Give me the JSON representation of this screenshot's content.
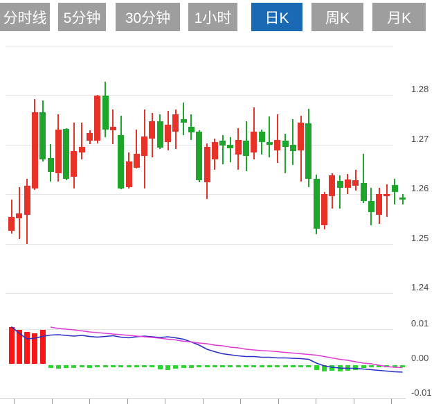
{
  "tab_bar": {
    "tabs": [
      {
        "label": "分时线",
        "active": false
      },
      {
        "label": "5分钟",
        "active": false
      },
      {
        "label": "30分钟",
        "active": false
      },
      {
        "label": "1小时",
        "active": false
      },
      {
        "label": "日K",
        "active": true
      },
      {
        "label": "周K",
        "active": false
      },
      {
        "label": "月K",
        "active": false
      }
    ],
    "active_color": "#1a69b4",
    "inactive_color": "#9e9e9e",
    "text_color": "#ffffff"
  },
  "price_axis": {
    "labels": [
      "1.28",
      "1.27",
      "1.26",
      "1.25",
      "1.24"
    ],
    "values": [
      1.28,
      1.27,
      1.26,
      1.25,
      1.24
    ]
  },
  "indicator_axis": {
    "labels": [
      "0.01",
      "0.00",
      "-0.01"
    ],
    "values": [
      0.01,
      0.0,
      -0.01
    ]
  },
  "colors": {
    "up": "#e63229",
    "down": "#1ea52c",
    "hist_up": "#f81616",
    "hist_down": "#2ed52e",
    "dif_line": "#2a2ec4",
    "dea_line": "#e13ad9",
    "grid": "#e3e3e3",
    "axis_text": "#4a4a4a"
  },
  "chart_data": {
    "type": "candlestick",
    "panels": [
      {
        "name": "price",
        "type": "candlestick",
        "ylim": [
          1.2385,
          1.2895
        ],
        "yticks": [
          1.28,
          1.27,
          1.26,
          1.25,
          1.24
        ],
        "up_means": "rise (red, CN convention)",
        "down_means": "fall (green, CN convention)",
        "candles_ohlc": [
          [
            1.2526,
            1.2589,
            1.252,
            1.2554
          ],
          [
            1.2551,
            1.2614,
            1.2509,
            1.2561
          ],
          [
            1.2558,
            1.2631,
            1.2499,
            1.2617
          ],
          [
            1.2611,
            1.2792,
            1.2609,
            1.2765
          ],
          [
            1.2765,
            1.2789,
            1.2666,
            1.267
          ],
          [
            1.2673,
            1.2701,
            1.2625,
            1.2645
          ],
          [
            1.2642,
            1.2761,
            1.2625,
            1.273
          ],
          [
            1.2732,
            1.2733,
            1.2628,
            1.2631
          ],
          [
            1.2635,
            1.2744,
            1.2611,
            1.2687
          ],
          [
            1.2684,
            1.2744,
            1.267,
            1.2695
          ],
          [
            1.2708,
            1.2729,
            1.2701,
            1.2723
          ],
          [
            1.2708,
            1.28,
            1.2702,
            1.2799
          ],
          [
            1.2799,
            1.2827,
            1.2715,
            1.273
          ],
          [
            1.2729,
            1.2771,
            1.2701,
            1.2736
          ],
          [
            1.2719,
            1.2758,
            1.261,
            1.2611
          ],
          [
            1.2614,
            1.2684,
            1.2611,
            1.2666
          ],
          [
            1.2653,
            1.273,
            1.2652,
            1.2681
          ],
          [
            1.2677,
            1.2771,
            1.2611,
            1.2716
          ],
          [
            1.2712,
            1.2764,
            1.2674,
            1.2747
          ],
          [
            1.2747,
            1.2761,
            1.2691,
            1.2694
          ],
          [
            1.2705,
            1.2768,
            1.2688,
            1.274
          ],
          [
            1.2726,
            1.2771,
            1.2691,
            1.2761
          ],
          [
            1.2751,
            1.2785,
            1.2719,
            1.2744
          ],
          [
            1.2736,
            1.2761,
            1.2709,
            1.2725
          ],
          [
            1.2726,
            1.2729,
            1.2624,
            1.2628
          ],
          [
            1.2624,
            1.2702,
            1.259,
            1.2695
          ],
          [
            1.267,
            1.2712,
            1.2649,
            1.2705
          ],
          [
            1.2708,
            1.2719,
            1.266,
            1.2698
          ],
          [
            1.27,
            1.2715,
            1.2665,
            1.2692
          ],
          [
            1.268,
            1.2733,
            1.2649,
            1.2709
          ],
          [
            1.2708,
            1.2747,
            1.2646,
            1.2677
          ],
          [
            1.2684,
            1.2775,
            1.267,
            1.2726
          ],
          [
            1.2726,
            1.273,
            1.268,
            1.2705
          ],
          [
            1.2705,
            1.2757,
            1.2674,
            1.2699
          ],
          [
            1.2688,
            1.2761,
            1.2663,
            1.2709
          ],
          [
            1.2708,
            1.2722,
            1.2642,
            1.2695
          ],
          [
            1.2699,
            1.2751,
            1.2659,
            1.2687
          ],
          [
            1.2688,
            1.2758,
            1.2625,
            1.2744
          ],
          [
            1.2743,
            1.2772,
            1.2614,
            1.2631
          ],
          [
            1.2631,
            1.2639,
            1.2519,
            1.253
          ],
          [
            1.2537,
            1.2604,
            1.2529,
            1.26
          ],
          [
            1.2596,
            1.2642,
            1.2571,
            1.2638
          ],
          [
            1.2627,
            1.2638,
            1.2571,
            1.2613
          ],
          [
            1.2613,
            1.2641,
            1.26,
            1.2629
          ],
          [
            1.2617,
            1.2649,
            1.2607,
            1.2628
          ],
          [
            1.2622,
            1.2681,
            1.2582,
            1.2586
          ],
          [
            1.2586,
            1.2613,
            1.2537,
            1.2564
          ],
          [
            1.2558,
            1.2613,
            1.254,
            1.26
          ],
          [
            1.2596,
            1.262,
            1.2554,
            1.26
          ],
          [
            1.2618,
            1.2631,
            1.2579,
            1.2604
          ],
          [
            1.2593,
            1.26,
            1.2579,
            1.2589
          ]
        ]
      },
      {
        "name": "macd",
        "type": "bar+line",
        "ylim": [
          -0.012,
          0.012
        ],
        "yticks": [
          0.01,
          0.0,
          -0.01
        ],
        "histogram": [
          0.0106,
          0.0098,
          0.0092,
          0.0088,
          0.0098,
          -0.0012,
          -0.0014,
          -0.0011,
          -0.0012,
          -0.0009,
          -0.0011,
          -0.0009,
          -0.0008,
          -0.0009,
          -0.0006,
          -0.0005,
          -0.0007,
          -0.0008,
          -0.0009,
          -0.0015,
          -0.0017,
          -0.0013,
          -0.0011,
          -0.0011,
          -0.0009,
          -0.0009,
          -0.0009,
          -0.0009,
          -0.0008,
          -0.0009,
          -0.0008,
          -0.0007,
          -0.0008,
          -0.0005,
          -0.0006,
          -0.0008,
          -0.0007,
          -0.0005,
          -0.0008,
          -0.0017,
          -0.0021,
          -0.0019,
          -0.0021,
          -0.0019,
          -0.0017,
          -0.0011,
          -0.0009,
          -0.0008,
          -0.0006,
          -0.0005,
          -0.0004
        ],
        "dif": [
          0.0107,
          0.0088,
          0.0072,
          0.0074,
          0.0079,
          0.0083,
          0.0084,
          0.0082,
          0.008,
          0.0082,
          0.0079,
          0.0077,
          0.0079,
          0.0081,
          0.0077,
          0.0075,
          0.0078,
          0.008,
          0.0078,
          0.0076,
          0.0078,
          0.0075,
          0.0071,
          0.0063,
          0.0054,
          0.0042,
          0.0035,
          0.0029,
          0.0026,
          0.0023,
          0.0021,
          0.0021,
          0.0019,
          0.0019,
          0.0017,
          0.0017,
          0.0016,
          0.0015,
          0.0013,
          0.0002,
          -0.0006,
          -0.001,
          -0.0012,
          -0.0013,
          -0.0013,
          -0.0015,
          -0.0017,
          -0.0019,
          -0.0021,
          -0.0023,
          -0.0024
        ],
        "dea": [
          null,
          null,
          null,
          null,
          null,
          0.0106,
          0.0102,
          0.01,
          0.0098,
          0.0095,
          0.0092,
          0.009,
          0.0088,
          0.0086,
          0.0084,
          0.0082,
          0.008,
          0.0078,
          0.0076,
          0.0074,
          0.0071,
          0.0069,
          0.0065,
          0.0063,
          0.006,
          0.0058,
          0.0054,
          0.0052,
          0.0048,
          0.0046,
          0.0042,
          0.004,
          0.0038,
          0.0037,
          0.0035,
          0.0033,
          0.0031,
          0.0029,
          0.0027,
          0.0025,
          0.0021,
          0.0017,
          0.0013,
          0.001,
          0.0006,
          0.0002,
          0.0,
          -0.0004,
          -0.0008,
          -0.001,
          -0.0011
        ]
      }
    ]
  }
}
